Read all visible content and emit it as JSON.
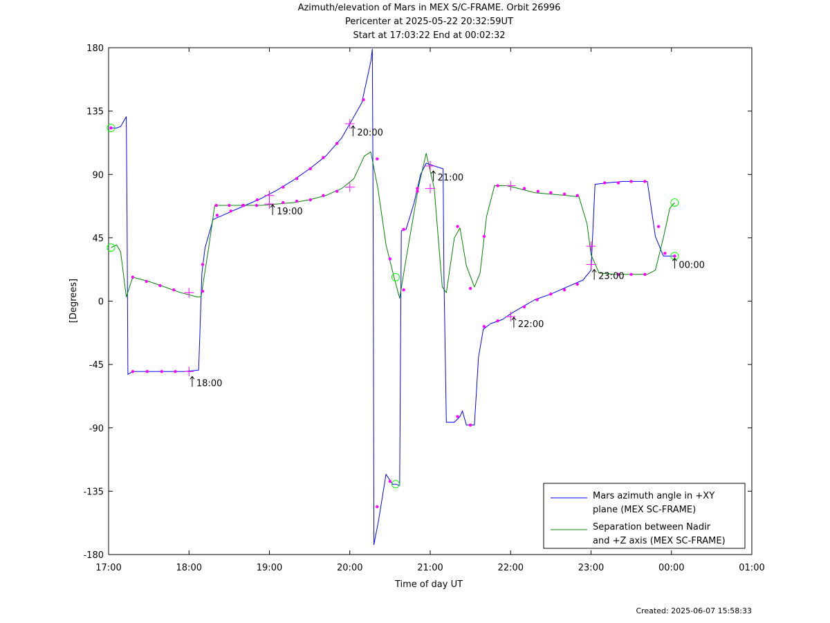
{
  "title_lines": [
    "Azimuth/elevation of Mars in MEX S/C-FRAME.  Orbit 26996",
    "Pericenter at 2025-05-22 20:32:59UT",
    "Start at 17:03:22 End at 00:02:32"
  ],
  "created": "Created: 2025-06-07 15:58:33",
  "colors": {
    "series_azimuth": "#0000ff",
    "series_separation": "#008000",
    "markers": "#ff00ff",
    "circles": "#00ff00",
    "frame": "#000000"
  },
  "chart_data": {
    "type": "line",
    "xlabel": "Time of day UT",
    "ylabel": "[Degrees]",
    "xlim": [
      17.0,
      25.0
    ],
    "ylim": [
      -180,
      180
    ],
    "x_tick_values": [
      17,
      18,
      19,
      20,
      21,
      22,
      23,
      24,
      25
    ],
    "x_tick_labels": [
      "17:00",
      "18:00",
      "19:00",
      "20:00",
      "21:00",
      "22:00",
      "23:00",
      "00:00",
      "01:00"
    ],
    "y_tick_values": [
      180,
      135,
      90,
      45,
      0,
      -45,
      -90,
      -135,
      -180
    ],
    "y_tick_labels": [
      "180",
      "135",
      "90",
      "45",
      "0",
      "-45",
      "-90",
      "-135",
      "-180"
    ],
    "grid": false,
    "legend_position": "bottom-right",
    "series": [
      {
        "name": "Mars azimuth angle in +XY plane (MEX SC-FRAME)",
        "legend_lines": [
          "Mars azimuth angle in +XY",
          "plane (MEX SC-FRAME)"
        ],
        "color": "#0000ff",
        "points": [
          [
            17.03,
            123
          ],
          [
            17.1,
            123
          ],
          [
            17.15,
            124
          ],
          [
            17.22,
            131
          ],
          [
            17.23,
            60
          ],
          [
            17.24,
            -52
          ],
          [
            17.3,
            -50
          ],
          [
            17.5,
            -50
          ],
          [
            17.7,
            -50
          ],
          [
            17.95,
            -50
          ],
          [
            18.12,
            -49
          ],
          [
            18.16,
            20
          ],
          [
            18.2,
            38
          ],
          [
            18.3,
            58
          ],
          [
            18.5,
            63
          ],
          [
            18.7,
            68
          ],
          [
            18.9,
            73
          ],
          [
            19.1,
            79
          ],
          [
            19.3,
            86
          ],
          [
            19.5,
            94
          ],
          [
            19.7,
            103
          ],
          [
            19.9,
            116
          ],
          [
            20.0,
            126
          ],
          [
            20.15,
            141
          ],
          [
            20.26,
            170
          ],
          [
            20.28,
            179
          ],
          [
            20.29,
            60
          ],
          [
            20.3,
            -173
          ],
          [
            20.36,
            -155
          ],
          [
            20.45,
            -123
          ],
          [
            20.53,
            -130
          ],
          [
            20.57,
            -130
          ],
          [
            20.62,
            -131
          ],
          [
            20.63,
            -40
          ],
          [
            20.64,
            50
          ],
          [
            20.7,
            51
          ],
          [
            20.8,
            70
          ],
          [
            20.88,
            90
          ],
          [
            20.95,
            98
          ],
          [
            21.05,
            96
          ],
          [
            21.16,
            94
          ],
          [
            21.17,
            20
          ],
          [
            21.2,
            -86
          ],
          [
            21.3,
            -86
          ],
          [
            21.37,
            -82
          ],
          [
            21.4,
            -78
          ],
          [
            21.45,
            -88
          ],
          [
            21.55,
            -88
          ],
          [
            21.6,
            -40
          ],
          [
            21.66,
            -20
          ],
          [
            21.75,
            -16
          ],
          [
            21.9,
            -13
          ],
          [
            22.0,
            -9
          ],
          [
            22.15,
            -4
          ],
          [
            22.3,
            1
          ],
          [
            22.5,
            5
          ],
          [
            22.7,
            10
          ],
          [
            22.9,
            15
          ],
          [
            23.0,
            22
          ],
          [
            23.05,
            83
          ],
          [
            23.2,
            84
          ],
          [
            23.4,
            85
          ],
          [
            23.65,
            85
          ],
          [
            23.7,
            85
          ],
          [
            23.8,
            46
          ],
          [
            23.9,
            32
          ],
          [
            24.04,
            32
          ]
        ]
      },
      {
        "name": "Separation between Nadir and +Z axis (MEX SC-FRAME)",
        "legend_lines": [
          "Separation between Nadir",
          "and +Z axis (MEX SC-FRAME)"
        ],
        "color": "#008000",
        "points": [
          [
            17.03,
            38
          ],
          [
            17.1,
            40
          ],
          [
            17.15,
            35
          ],
          [
            17.22,
            3
          ],
          [
            17.3,
            17
          ],
          [
            17.5,
            14
          ],
          [
            17.7,
            10
          ],
          [
            17.9,
            6
          ],
          [
            18.1,
            3
          ],
          [
            18.15,
            3
          ],
          [
            18.25,
            40
          ],
          [
            18.32,
            68
          ],
          [
            18.5,
            68
          ],
          [
            18.7,
            68
          ],
          [
            18.9,
            68
          ],
          [
            19.1,
            69
          ],
          [
            19.3,
            70
          ],
          [
            19.5,
            72
          ],
          [
            19.7,
            75
          ],
          [
            19.9,
            80
          ],
          [
            20.05,
            87
          ],
          [
            20.18,
            103
          ],
          [
            20.26,
            106
          ],
          [
            20.35,
            80
          ],
          [
            20.45,
            40
          ],
          [
            20.55,
            17
          ],
          [
            20.62,
            2
          ],
          [
            20.7,
            30
          ],
          [
            20.85,
            80
          ],
          [
            20.95,
            105
          ],
          [
            21.05,
            80
          ],
          [
            21.15,
            10
          ],
          [
            21.2,
            6
          ],
          [
            21.3,
            45
          ],
          [
            21.37,
            52
          ],
          [
            21.45,
            25
          ],
          [
            21.55,
            10
          ],
          [
            21.62,
            20
          ],
          [
            21.7,
            60
          ],
          [
            21.8,
            82
          ],
          [
            21.95,
            82
          ],
          [
            22.1,
            80
          ],
          [
            22.3,
            77
          ],
          [
            22.5,
            76
          ],
          [
            22.7,
            75
          ],
          [
            22.85,
            74
          ],
          [
            22.95,
            55
          ],
          [
            23.0,
            33
          ],
          [
            23.1,
            20
          ],
          [
            23.3,
            19
          ],
          [
            23.5,
            19
          ],
          [
            23.7,
            19
          ],
          [
            23.8,
            22
          ],
          [
            23.9,
            45
          ],
          [
            23.98,
            66
          ],
          [
            24.04,
            70
          ]
        ]
      }
    ],
    "annotations": [
      {
        "text": "18:00",
        "x": 18.04,
        "y": -52
      },
      {
        "text": "19:00",
        "x": 19.04,
        "y": 70
      },
      {
        "text": "20:00",
        "x": 20.04,
        "y": 126
      },
      {
        "text": "21:00",
        "x": 21.04,
        "y": 94
      },
      {
        "text": "22:00",
        "x": 22.04,
        "y": -10
      },
      {
        "text": "23:00",
        "x": 23.04,
        "y": 24
      },
      {
        "text": "00:00",
        "x": 24.04,
        "y": 32
      }
    ],
    "circle_markers": [
      [
        17.03,
        123
      ],
      [
        17.03,
        38
      ],
      [
        20.57,
        17
      ],
      [
        20.57,
        -130
      ],
      [
        24.04,
        70
      ],
      [
        24.04,
        32
      ]
    ],
    "hour_crosses": [
      [
        18.0,
        -50
      ],
      [
        18.0,
        6
      ],
      [
        19.0,
        75
      ],
      [
        19.0,
        69
      ],
      [
        20.0,
        126
      ],
      [
        20.0,
        81
      ],
      [
        21.0,
        96
      ],
      [
        21.0,
        80
      ],
      [
        22.0,
        -11
      ],
      [
        22.0,
        82
      ],
      [
        23.0,
        26
      ],
      [
        23.0,
        39
      ]
    ],
    "dots": [
      [
        17.03,
        123
      ],
      [
        17.3,
        -50
      ],
      [
        17.48,
        -50
      ],
      [
        17.66,
        -50
      ],
      [
        17.83,
        -50
      ],
      [
        18.17,
        26
      ],
      [
        18.35,
        61
      ],
      [
        18.52,
        64
      ],
      [
        18.68,
        68
      ],
      [
        18.85,
        72
      ],
      [
        19.17,
        81
      ],
      [
        19.34,
        87
      ],
      [
        19.51,
        94
      ],
      [
        19.67,
        102
      ],
      [
        19.84,
        112
      ],
      [
        20.17,
        143
      ],
      [
        20.34,
        -146
      ],
      [
        20.5,
        -128
      ],
      [
        20.67,
        51
      ],
      [
        20.84,
        78
      ],
      [
        21.34,
        -82
      ],
      [
        21.5,
        -88
      ],
      [
        21.67,
        -18
      ],
      [
        21.84,
        -14
      ],
      [
        22.17,
        -4
      ],
      [
        22.33,
        1
      ],
      [
        22.5,
        5
      ],
      [
        22.67,
        8
      ],
      [
        22.83,
        12
      ],
      [
        23.17,
        84
      ],
      [
        23.34,
        84
      ],
      [
        23.5,
        85
      ],
      [
        23.67,
        85
      ],
      [
        23.84,
        53
      ],
      [
        23.92,
        34
      ],
      [
        17.3,
        17
      ],
      [
        17.47,
        14
      ],
      [
        17.64,
        11
      ],
      [
        17.81,
        8
      ],
      [
        18.17,
        7
      ],
      [
        18.34,
        68
      ],
      [
        18.5,
        68
      ],
      [
        18.67,
        68
      ],
      [
        18.84,
        68
      ],
      [
        19.17,
        70
      ],
      [
        19.34,
        71
      ],
      [
        19.51,
        72
      ],
      [
        19.67,
        75
      ],
      [
        19.84,
        78
      ],
      [
        20.34,
        101
      ],
      [
        20.5,
        30
      ],
      [
        20.67,
        8
      ],
      [
        20.84,
        80
      ],
      [
        21.34,
        53
      ],
      [
        21.5,
        9
      ],
      [
        21.67,
        46
      ],
      [
        21.84,
        82
      ],
      [
        22.17,
        80
      ],
      [
        22.34,
        78
      ],
      [
        22.5,
        77
      ],
      [
        22.67,
        76
      ],
      [
        22.83,
        75
      ],
      [
        23.34,
        19
      ],
      [
        23.5,
        19
      ],
      [
        23.67,
        19
      ],
      [
        24.04,
        32
      ]
    ]
  }
}
